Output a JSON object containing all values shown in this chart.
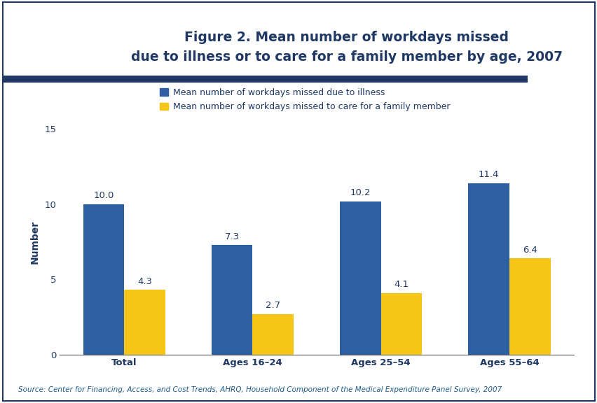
{
  "title_line1": "Figure 2. Mean number of workdays missed",
  "title_line2": "due to illness or to care for a family member by age, 2007",
  "categories": [
    "Total",
    "Ages 16–24",
    "Ages 25–54",
    "Ages 55–64"
  ],
  "illness_values": [
    10.0,
    7.3,
    10.2,
    11.4
  ],
  "family_values": [
    4.3,
    2.7,
    4.1,
    6.4
  ],
  "illness_color": "#2E5FA3",
  "family_color": "#F5C518",
  "ylabel": "Number",
  "ylim": [
    0,
    15
  ],
  "yticks": [
    0,
    5,
    10,
    15
  ],
  "legend_label_illness": "Mean number of workdays missed due to illness",
  "legend_label_family": "Mean number of workdays missed to care for a family member",
  "source_text": "Source: Center for Financing, Access, and Cost Trends, AHRQ, Household Component of the Medical Expenditure Panel Survey, 2007",
  "title_color": "#1F3864",
  "axis_label_color": "#1F3864",
  "tick_label_color": "#1F3864",
  "bar_label_color": "#1F3864",
  "source_color": "#1F5C8B",
  "background_color": "#FFFFFF",
  "plot_bg_color": "#FFFFFF",
  "header_bg_color": "#FFFFFF",
  "separator_color": "#1F3864",
  "outer_border_color": "#1F3864",
  "title_fontsize": 13.5,
  "bar_width": 0.32,
  "bar_label_fontsize": 9.5,
  "legend_fontsize": 9,
  "ylabel_fontsize": 10,
  "tick_fontsize": 9.5,
  "source_fontsize": 7.5
}
